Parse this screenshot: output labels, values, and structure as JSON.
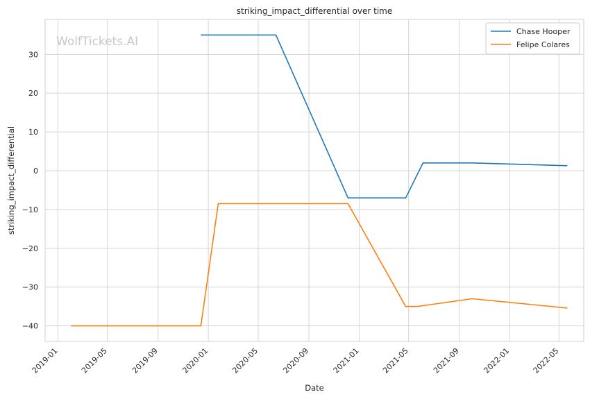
{
  "chart_data": {
    "type": "line",
    "title": "striking_impact_differential over time",
    "xlabel": "Date",
    "ylabel": "striking_impact_differential",
    "watermark": "WolfTickets.AI",
    "xlim": [
      "2018-12-01",
      "2022-06-30"
    ],
    "ylim": [
      -44,
      39
    ],
    "x_ticks": [
      "2019-01",
      "2019-05",
      "2019-09",
      "2020-01",
      "2020-05",
      "2020-09",
      "2021-01",
      "2021-05",
      "2021-09",
      "2022-01",
      "2022-05"
    ],
    "y_ticks": [
      30,
      20,
      10,
      0,
      -10,
      -20,
      -30,
      -40
    ],
    "grid": true,
    "legend_position": "top-right",
    "series": [
      {
        "name": "Chase Hooper",
        "color": "#1f77b4",
        "points": [
          {
            "x": "2019-12-14",
            "y": 35
          },
          {
            "x": "2020-06-13",
            "y": 35
          },
          {
            "x": "2020-12-05",
            "y": -7
          },
          {
            "x": "2021-04-24",
            "y": -7
          },
          {
            "x": "2021-06-05",
            "y": 2
          },
          {
            "x": "2021-10-02",
            "y": 2
          },
          {
            "x": "2022-05-21",
            "y": 1.3
          }
        ]
      },
      {
        "name": "Felipe Colares",
        "color": "#ff7f0e",
        "points": [
          {
            "x": "2019-02-02",
            "y": -40
          },
          {
            "x": "2019-12-14",
            "y": -40
          },
          {
            "x": "2020-01-25",
            "y": -8.5
          },
          {
            "x": "2020-12-05",
            "y": -8.5
          },
          {
            "x": "2021-04-24",
            "y": -35
          },
          {
            "x": "2021-05-22",
            "y": -35
          },
          {
            "x": "2021-10-02",
            "y": -33
          },
          {
            "x": "2022-05-21",
            "y": -35.4
          }
        ]
      }
    ]
  }
}
